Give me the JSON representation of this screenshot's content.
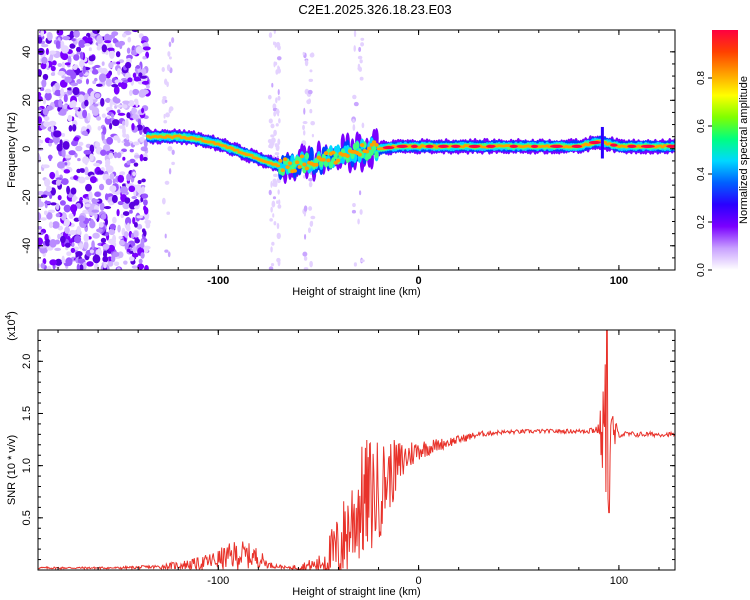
{
  "title": "C2E1.2025.326.18.23.E03",
  "chart_data": [
    {
      "type": "heatmap",
      "title": "C2E1.2025.326.18.23.E03",
      "xlabel": "Height of straight line (km)",
      "ylabel": "Frequency (Hz)",
      "xlim": [
        -190,
        128
      ],
      "ylim": [
        -50,
        49
      ],
      "xticks": [
        -100,
        0,
        100
      ],
      "yticks": [
        -40,
        -20,
        0,
        20,
        40
      ],
      "colorbar": {
        "label": "Normalized spectral amplitude",
        "range": [
          0,
          1
        ],
        "ticks": [
          0.0,
          0.2,
          0.4,
          0.6,
          0.8
        ],
        "colors": [
          "#ffffff",
          "#c8a0ff",
          "#7a00ff",
          "#2a00ff",
          "#0060ff",
          "#00d8ff",
          "#00ff80",
          "#80ff00",
          "#ffff00",
          "#ffa000",
          "#ff4000",
          "#ff0040"
        ]
      },
      "ridge": {
        "x": [
          -135,
          -120,
          -110,
          -100,
          -90,
          -80,
          -70,
          -60,
          -50,
          -40,
          -30,
          -20,
          -10,
          0,
          20,
          40,
          60,
          80,
          90,
          100,
          128
        ],
        "y": [
          5,
          5,
          4,
          2,
          -1,
          -4,
          -7,
          -6,
          -5,
          -3,
          -1,
          0,
          1,
          1,
          1,
          1,
          1,
          1,
          3,
          1,
          1
        ]
      },
      "noise_band_x": [
        -190,
        -135
      ],
      "grid": false
    },
    {
      "type": "line",
      "xlabel": "Height of straight line (km)",
      "ylabel": "SNR (10 * v/v)",
      "yscale_label": "(x10",
      "yscale_exp": "4",
      "xlim": [
        -190,
        128
      ],
      "ylim": [
        0,
        2.3
      ],
      "xticks": [
        -100,
        0,
        100
      ],
      "yticks": [
        0.5,
        1.0,
        1.5,
        2.0
      ],
      "ytick_labels": [
        "0.5",
        "1.0",
        "1.5",
        "2.0"
      ],
      "color": "#e8322a",
      "envelope": {
        "x": [
          -190,
          -150,
          -130,
          -110,
          -100,
          -90,
          -80,
          -75,
          -65,
          -50,
          -40,
          -35,
          -30,
          -25,
          -20,
          -15,
          -10,
          -5,
          0,
          10,
          20,
          30,
          40,
          60,
          80,
          90,
          92,
          94,
          96,
          100,
          128
        ],
        "base": [
          0.02,
          0.02,
          0.03,
          0.06,
          0.1,
          0.15,
          0.12,
          0.05,
          0.02,
          0.05,
          0.2,
          0.4,
          0.6,
          0.7,
          0.75,
          0.9,
          1.0,
          1.1,
          1.15,
          1.2,
          1.25,
          1.3,
          1.32,
          1.33,
          1.33,
          1.35,
          1.3,
          1.3,
          1.3,
          1.3,
          1.3
        ],
        "amp": [
          0.01,
          0.01,
          0.02,
          0.06,
          0.1,
          0.15,
          0.1,
          0.03,
          0.01,
          0.08,
          0.35,
          0.45,
          0.55,
          0.6,
          0.5,
          0.35,
          0.25,
          0.15,
          0.1,
          0.06,
          0.04,
          0.03,
          0.02,
          0.02,
          0.02,
          0.05,
          0.5,
          0.9,
          0.3,
          0.03,
          0.02
        ]
      }
    }
  ]
}
